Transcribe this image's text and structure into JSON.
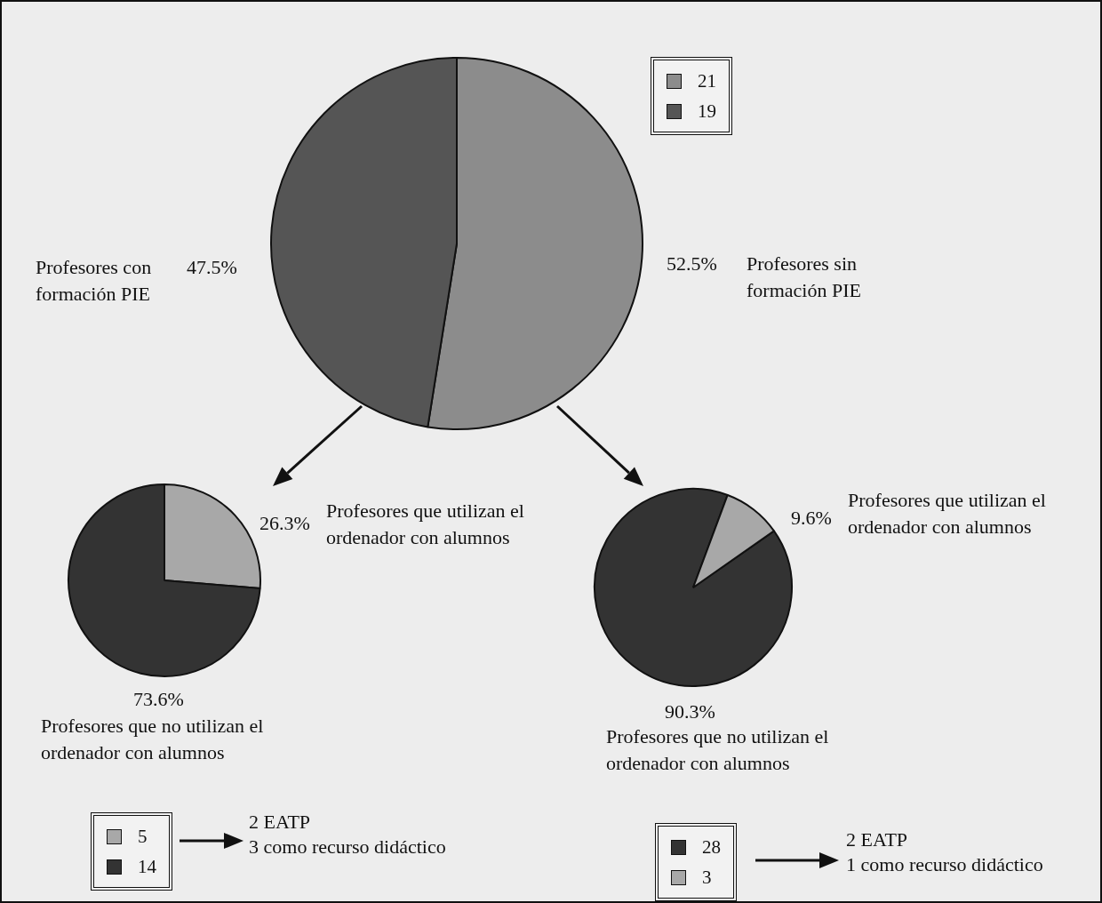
{
  "chart_data": [
    {
      "type": "pie",
      "categories": [
        "21",
        "19"
      ],
      "values": [
        52.5,
        47.5
      ],
      "value_labels": [
        "52.5%",
        "47.5%"
      ],
      "colors": [
        "#8c8c8c",
        "#555555"
      ],
      "legend": "top right",
      "annotations": [
        "Profesores sin formación PIE",
        "Profesores con formación PIE"
      ]
    },
    {
      "type": "pie",
      "categories": [
        "5",
        "14"
      ],
      "values": [
        26.3,
        73.6
      ],
      "value_labels": [
        "26.3%",
        "73.6%"
      ],
      "colors": [
        "#a8a8a8",
        "#333333"
      ],
      "legend": "bottom left",
      "annotations": [
        "Profesores que utilizan el ordenador con alumnos",
        "Profesores que no utilizan el ordenador con alumnos",
        "2 EATP",
        "3 como recurso didáctico"
      ]
    },
    {
      "type": "pie",
      "categories": [
        "28",
        "3"
      ],
      "values": [
        90.3,
        9.6
      ],
      "value_labels": [
        "90.3%",
        "9.6%"
      ],
      "colors": [
        "#333333",
        "#a8a8a8"
      ],
      "legend": "bottom left",
      "annotations": [
        "Profesores que utilizan el ordenador con alumnos",
        "Profesores que no utilizan el ordenador con alumnos",
        "2 EATP",
        "1 como recurso didáctico"
      ]
    }
  ]
}
